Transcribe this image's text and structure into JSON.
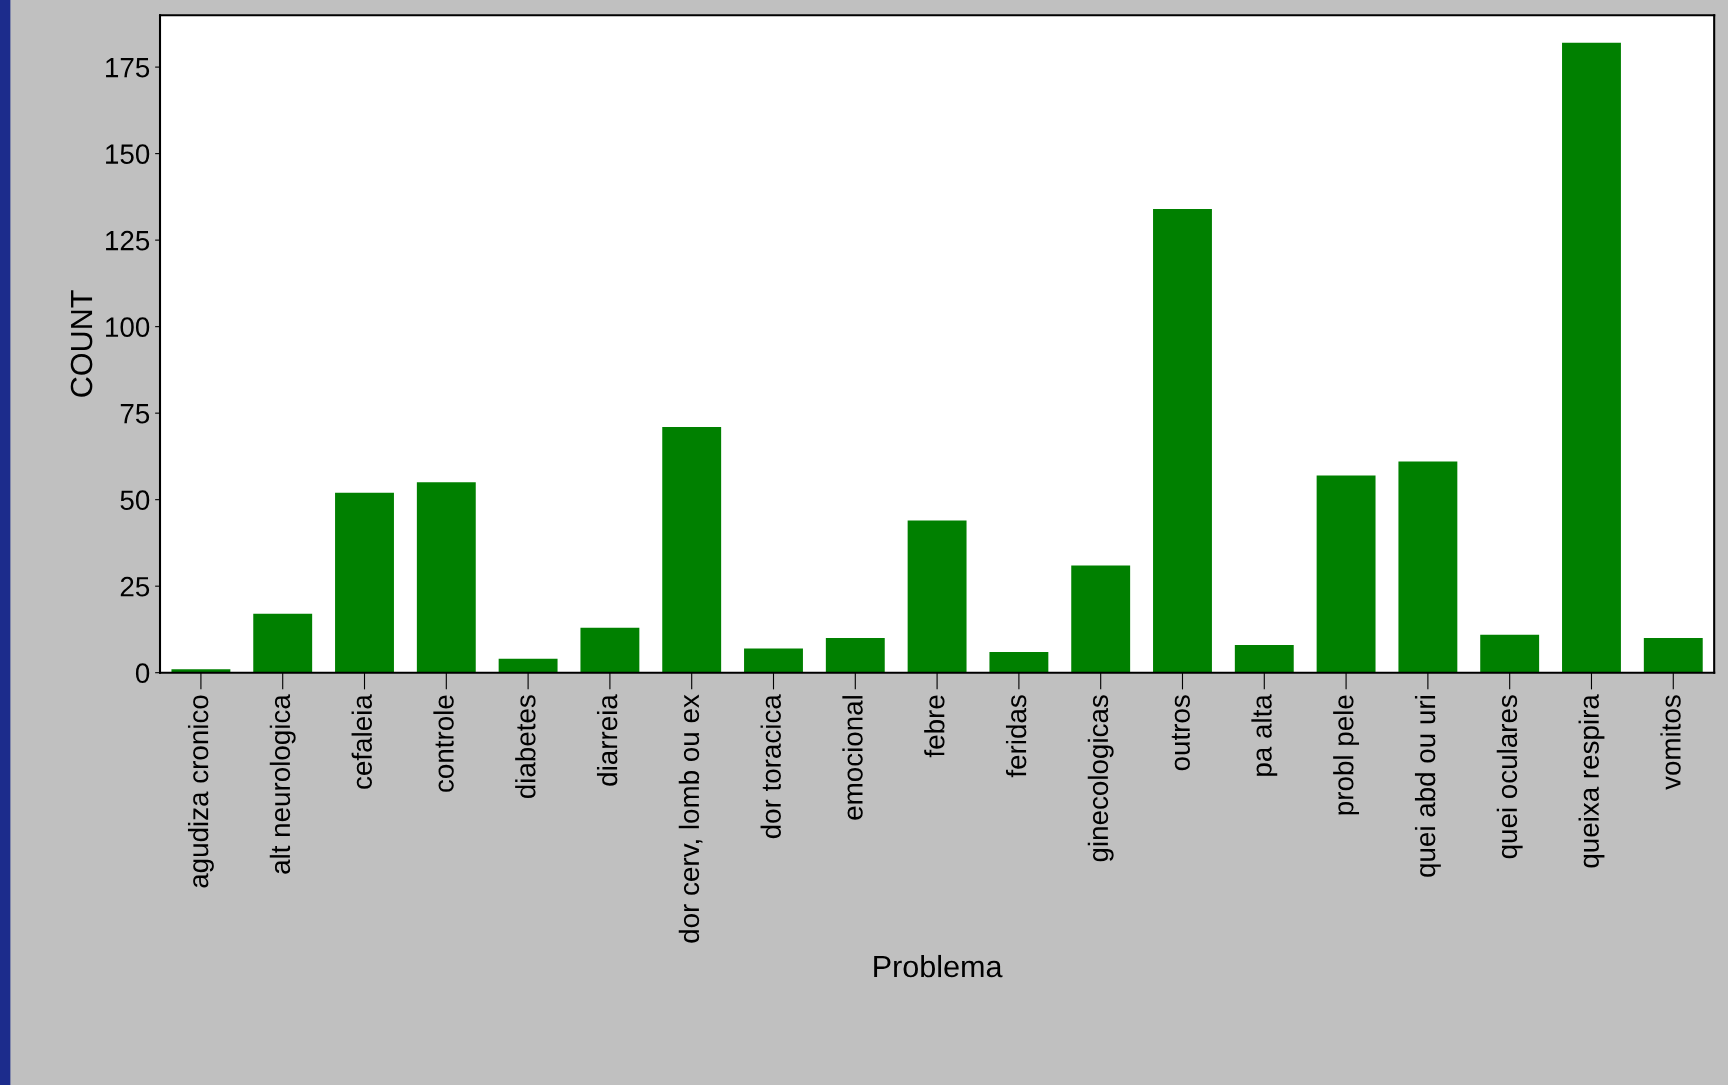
{
  "chart_data": {
    "type": "bar",
    "xlabel": "Problema",
    "ylabel": "COUNT",
    "categories": [
      "agudiza cronico",
      "alt neurologica",
      "cefaleia",
      "controle",
      "diabetes",
      "diarreia",
      "dor cerv, lomb ou ex",
      "dor toracica",
      "emocional",
      "febre",
      "feridas",
      "ginecologicas",
      "outros",
      "pa alta",
      "probl pele",
      "quei abd ou uri",
      "quei oculares",
      "queixa respira",
      "vomitos"
    ],
    "values": [
      1,
      17,
      52,
      55,
      4,
      13,
      71,
      7,
      10,
      44,
      6,
      31,
      134,
      8,
      57,
      61,
      11,
      182,
      10
    ],
    "color": "#008000",
    "ylim": [
      0,
      190
    ],
    "yticks": [
      0,
      25,
      50,
      75,
      100,
      125,
      150,
      175
    ],
    "grid": false,
    "legend": false
  }
}
